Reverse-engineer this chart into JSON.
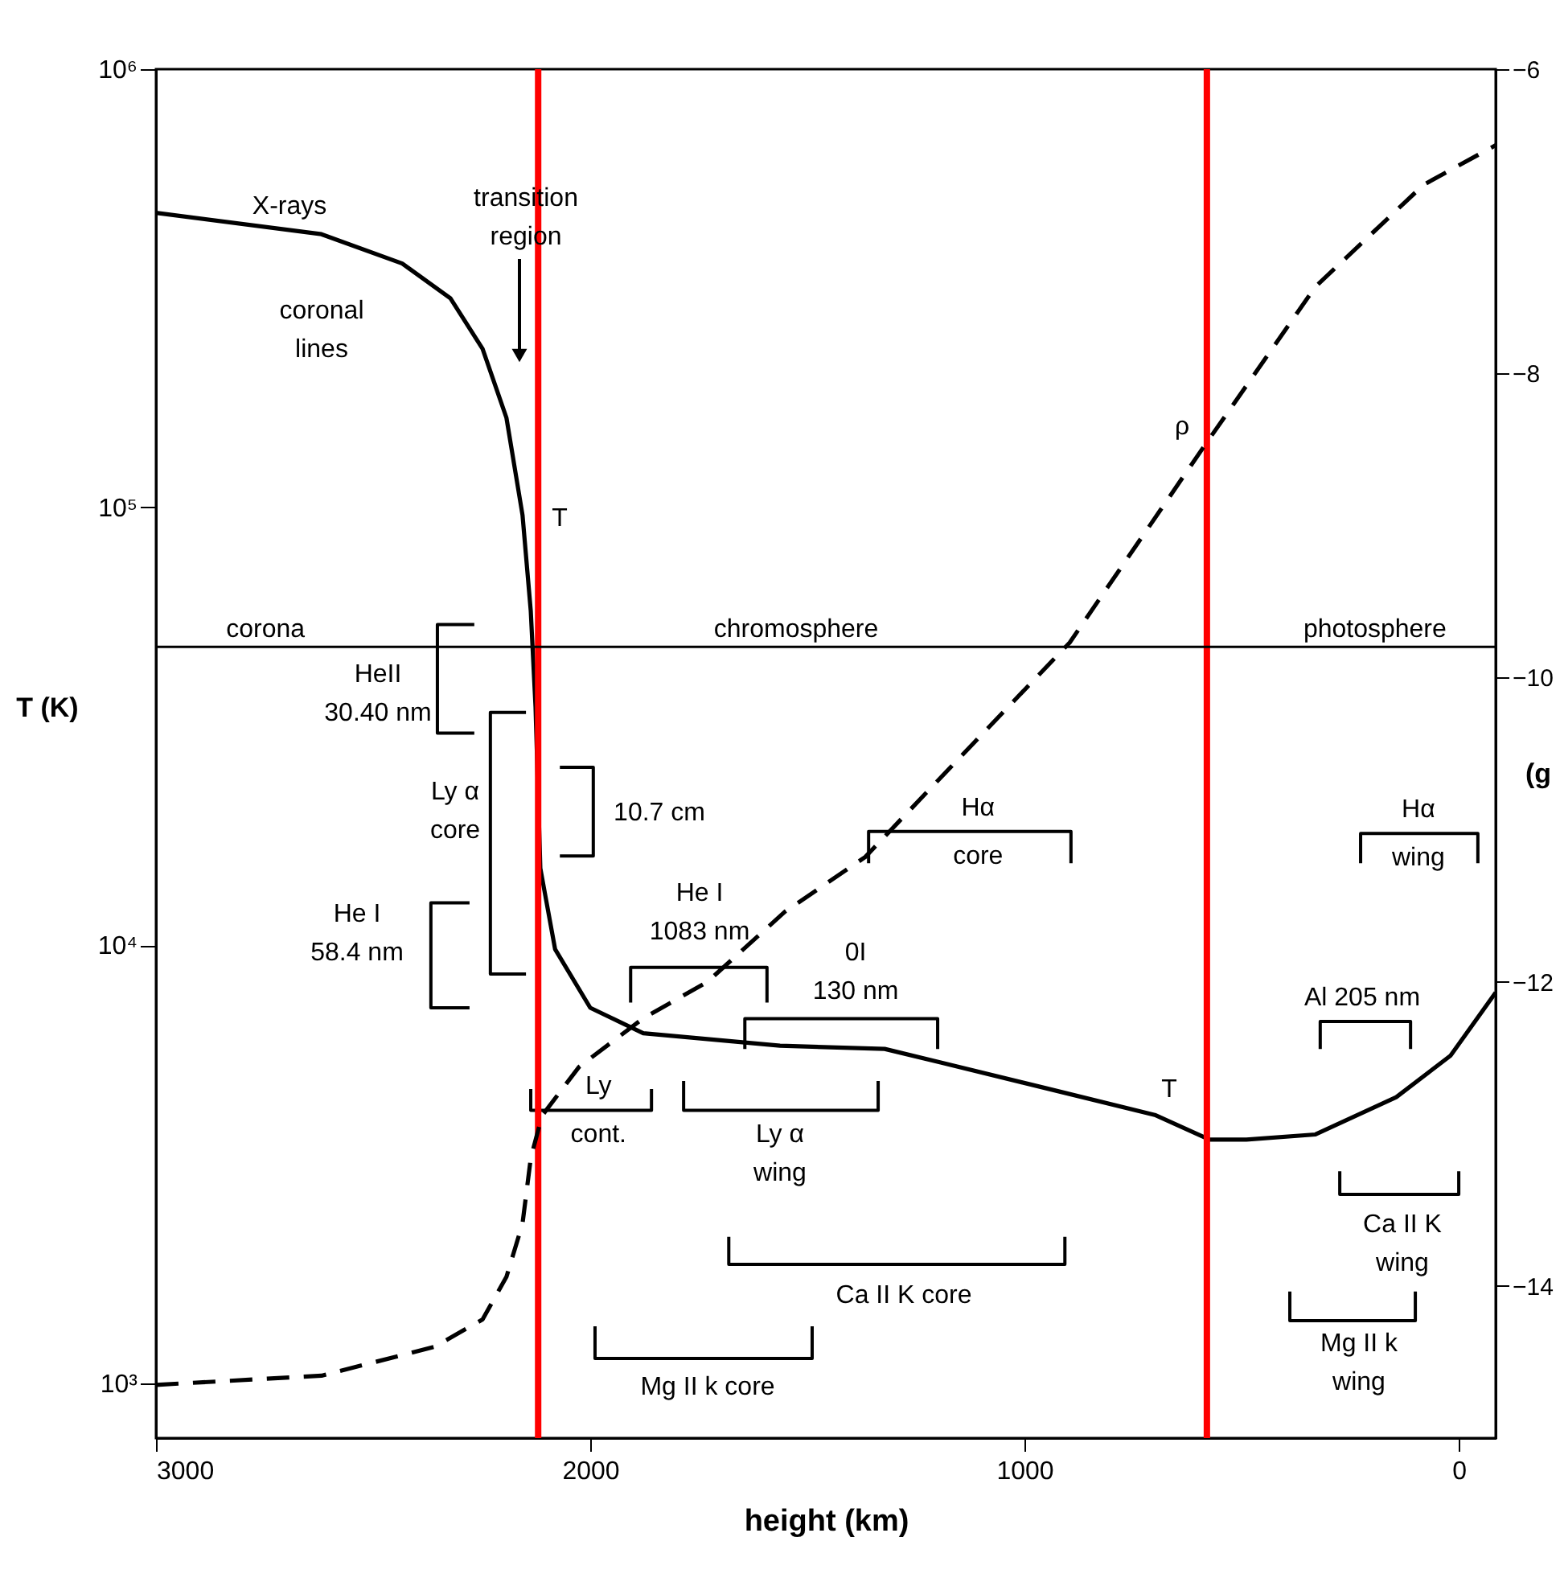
{
  "chart_data": {
    "type": "line",
    "xlabel": "height (km)",
    "ylabel": "T (K)",
    "y2label": "(g",
    "xlim": [
      3000,
      -85
    ],
    "xticks": [
      3000,
      2000,
      1000,
      0
    ],
    "log": "y",
    "ylim": [
      750,
      1000000
    ],
    "yticks": [
      {
        "value": 1000,
        "label": "10³"
      },
      {
        "value": 10000,
        "label": "10⁴"
      },
      {
        "value": 100000,
        "label": "10⁵"
      },
      {
        "value": 1000000,
        "label": "10⁶"
      }
    ],
    "y2lim": [
      -15,
      -6
    ],
    "y2ticks": [
      -6,
      -8,
      -10,
      -12,
      -14
    ],
    "grid": false,
    "series": [
      {
        "color": "#000000",
        "x": [
          3000,
          2619,
          2433,
          2322,
          2248,
          2193,
          2156,
          2137,
          2126,
          2115,
          2081,
          2000,
          1878,
          1563,
          1322,
          1193,
          944,
          700,
          574,
          489,
          330,
          144,
          19,
          -85
        ],
        "values": [
          470000,
          420000,
          360000,
          300000,
          230000,
          160000,
          96000,
          58000,
          35000,
          15000,
          9800,
          7200,
          6300,
          5900,
          5800,
          5400,
          4700,
          4100,
          3600,
          3600,
          3700,
          4500,
          5600,
          7800
        ]
      },
      {
        "axis": "y2",
        "line_style": "dashed",
        "color": "#000000",
        "x": [
          3000,
          2619,
          2359,
          2248,
          2193,
          2156,
          2137,
          2111,
          2026,
          1878,
          1730,
          1552,
          1367,
          1107,
          896,
          589,
          330,
          81,
          -85
        ],
        "values": [
          -14.65,
          -14.59,
          -14.4,
          -14.22,
          -13.94,
          -13.59,
          -13.16,
          -12.88,
          -12.56,
          -12.24,
          -12.0,
          -11.54,
          -11.18,
          -10.4,
          -9.77,
          -8.49,
          -7.43,
          -6.76,
          -6.5
        ]
      },
      {
        "color": "#000000",
        "x": [
          2267,
          2352,
          2352,
          2267
        ],
        "values": [
          54000,
          54000,
          30500,
          30500
        ]
      },
      {
        "color": "#000000",
        "x": [
          2148,
          2230,
          2230,
          2148
        ],
        "values": [
          34000,
          34000,
          8600,
          8600
        ]
      },
      {
        "color": "#000000",
        "x": [
          2278,
          2367,
          2367,
          2278
        ],
        "values": [
          12500,
          12500,
          7200,
          7200
        ]
      },
      {
        "color": "#000000",
        "x": [
          2070,
          1993,
          1993,
          2070
        ],
        "values": [
          25500,
          25500,
          16000,
          16000
        ]
      },
      {
        "color": "#000000",
        "x": [
          1359,
          1359,
          893,
          893
        ],
        "values": [
          15400,
          18200,
          18200,
          15400
        ]
      },
      {
        "color": "#000000",
        "x": [
          1907,
          1907,
          1593,
          1593
        ],
        "values": [
          7400,
          8900,
          8900,
          7400
        ]
      },
      {
        "color": "#000000",
        "x": [
          1644,
          1644,
          1200,
          1200
        ],
        "values": [
          5800,
          6800,
          6800,
          5800
        ]
      },
      {
        "color": "#000000",
        "x": [
          1785,
          1785,
          1337,
          1337
        ],
        "values": [
          4900,
          4200,
          4200,
          4900
        ]
      },
      {
        "color": "#000000",
        "x": [
          2137,
          2137,
          1859,
          1859
        ],
        "values": [
          4700,
          4200,
          4200,
          4700
        ]
      },
      {
        "color": "#000000",
        "x": [
          226,
          226,
          -44,
          -44
        ],
        "values": [
          15400,
          18000,
          18000,
          15400
        ]
      },
      {
        "color": "#000000",
        "x": [
          319,
          319,
          111,
          111
        ],
        "values": [
          5800,
          6700,
          6700,
          5800
        ]
      },
      {
        "color": "#000000",
        "x": [
          274,
          274,
          0,
          0
        ],
        "values": [
          3050,
          2700,
          2700,
          3050
        ]
      },
      {
        "color": "#000000",
        "x": [
          1681,
          1681,
          907,
          907
        ],
        "values": [
          2160,
          1870,
          1870,
          2160
        ]
      },
      {
        "color": "#000000",
        "x": [
          389,
          389,
          100,
          100
        ],
        "values": [
          1620,
          1390,
          1390,
          1620
        ]
      },
      {
        "color": "#000000",
        "x": [
          1989,
          1989,
          1489,
          1489
        ],
        "values": [
          1350,
          1140,
          1140,
          1350
        ]
      }
    ],
    "ref_lines": [
      {
        "axis": "x",
        "value": 2120,
        "color": "#ff0000"
      },
      {
        "axis": "x",
        "value": 580,
        "color": "#ff0000"
      },
      {
        "axis": "y",
        "value": 48000,
        "color": "#000000"
      }
    ],
    "annotations": [
      "X-rays",
      "transition\nregion",
      "coronal\nlines",
      {
        "text": "corona",
        "x": 2748,
        "y": 48000
      },
      {
        "text": "chromosphere",
        "x": 1526,
        "y": 48000
      },
      {
        "text": "photosphere",
        "x": 193,
        "y": 48000
      },
      "HeII\n30.40 nm",
      "Ly α\ncore",
      "He I\n58.4 nm",
      "10.7 cm",
      {
        "text": "Hα\ncore",
        "x": 1107,
        "y": 18200
      },
      "He I\n1083 nm",
      "0I\n130 nm",
      {
        "text": "Hα\nwing",
        "x": 93,
        "y": 18000
      },
      "Al 205 nm",
      {
        "text": "Ly\ncont.",
        "x": 1981,
        "y": 4200
      },
      "Ly α\nwing",
      "Ca II K\nwing",
      "Ca II K core",
      "Mg II k\nwing",
      "Mg II k core",
      "T",
      "T",
      "ρ"
    ]
  }
}
